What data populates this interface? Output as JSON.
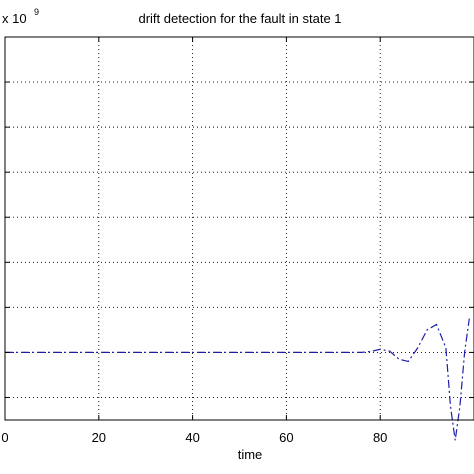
{
  "chart_data": {
    "type": "line",
    "title": "drift detection for the fault in state 1",
    "xlabel": "time",
    "ylabel": "",
    "multiplier": {
      "base": "x 10",
      "exponent": "9"
    },
    "xlim": [
      0,
      100
    ],
    "ylim": [
      -1.5,
      7
    ],
    "xticks": [
      0,
      20,
      40,
      60,
      80
    ],
    "xtick_labels": [
      "0",
      "20",
      "40",
      "60",
      "80"
    ],
    "yticks": [
      -1,
      0,
      1,
      2,
      3,
      4,
      5,
      6,
      7
    ],
    "grid": true,
    "series": [
      {
        "color": "#1f1fa8",
        "style": "dash-dot",
        "x": [
          0,
          10,
          20,
          30,
          40,
          50,
          60,
          70,
          73,
          76,
          78,
          80,
          82,
          84,
          86,
          88,
          90,
          92,
          94,
          95,
          96,
          97,
          98,
          99
        ],
        "y": [
          0,
          0,
          0,
          0,
          0,
          0,
          0,
          0,
          0,
          0,
          0.02,
          0.07,
          0.03,
          -0.15,
          -0.2,
          0.1,
          0.5,
          0.62,
          0.1,
          -1.2,
          -1.95,
          -1.2,
          0,
          0.75
        ]
      }
    ]
  }
}
